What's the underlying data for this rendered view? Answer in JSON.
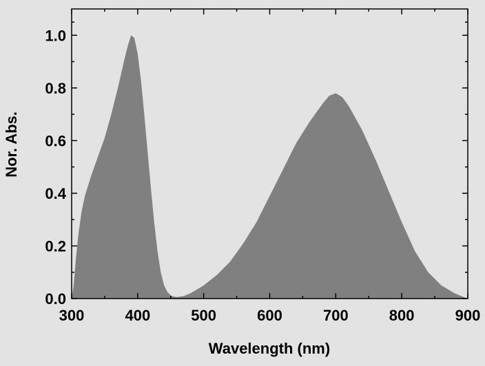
{
  "chart_data": {
    "type": "area",
    "xlabel": "Wavelength (nm)",
    "ylabel": "Nor. Abs.",
    "xlim": [
      300,
      900
    ],
    "ylim": [
      0,
      1.1
    ],
    "x_ticks": [
      300,
      400,
      500,
      600,
      700,
      800,
      900
    ],
    "x_tick_labels": [
      "300",
      "400",
      "500",
      "600",
      "700",
      "800",
      "900"
    ],
    "y_ticks": [
      0.0,
      0.2,
      0.4,
      0.6,
      0.8,
      1.0
    ],
    "y_tick_labels": [
      "0.0",
      "0.2",
      "0.4",
      "0.6",
      "0.8",
      "1.0"
    ],
    "grid": false,
    "fill_color": "#808080",
    "background_color": "#e3e3e3",
    "series": [
      {
        "x": [
          300,
          303,
          306,
          310,
          315,
          320,
          330,
          340,
          350,
          360,
          370,
          380,
          385,
          390,
          395,
          400,
          405,
          410,
          415,
          420,
          425,
          430,
          435,
          440,
          445,
          450,
          455,
          460,
          470,
          480,
          490,
          500,
          520,
          540,
          560,
          580,
          600,
          620,
          640,
          660,
          680,
          690,
          700,
          710,
          720,
          740,
          760,
          780,
          800,
          820,
          840,
          860,
          880,
          890,
          900
        ],
        "y": [
          0.0,
          0.05,
          0.14,
          0.24,
          0.33,
          0.39,
          0.47,
          0.54,
          0.61,
          0.7,
          0.8,
          0.91,
          0.96,
          1.0,
          0.99,
          0.93,
          0.83,
          0.7,
          0.56,
          0.42,
          0.29,
          0.18,
          0.1,
          0.05,
          0.025,
          0.012,
          0.007,
          0.006,
          0.01,
          0.02,
          0.035,
          0.05,
          0.09,
          0.14,
          0.21,
          0.29,
          0.39,
          0.49,
          0.59,
          0.67,
          0.74,
          0.77,
          0.78,
          0.765,
          0.73,
          0.64,
          0.53,
          0.41,
          0.29,
          0.18,
          0.1,
          0.05,
          0.02,
          0.01,
          0.0
        ]
      }
    ]
  }
}
